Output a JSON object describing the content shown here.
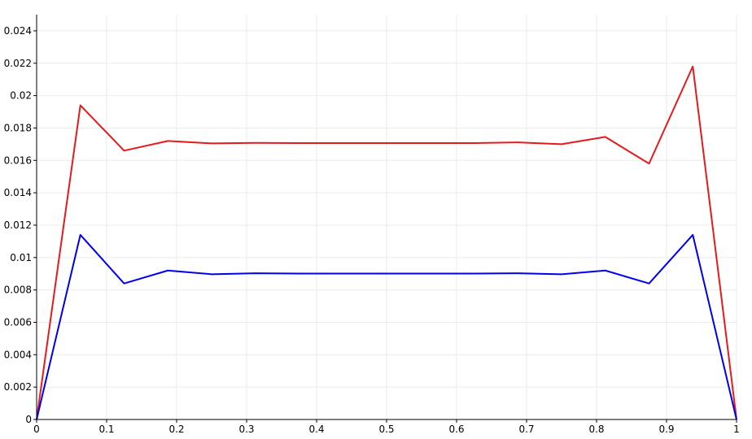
{
  "chart_data": {
    "type": "line",
    "xlim": [
      0,
      1
    ],
    "ylim": [
      0,
      0.025
    ],
    "grid": true,
    "legend": "none",
    "x_ticks": [
      {
        "value": 0,
        "label": "0"
      },
      {
        "value": 0.1,
        "label": "0.1"
      },
      {
        "value": 0.2,
        "label": "0.2"
      },
      {
        "value": 0.3,
        "label": "0.3"
      },
      {
        "value": 0.4,
        "label": "0.4"
      },
      {
        "value": 0.5,
        "label": "0.5"
      },
      {
        "value": 0.6,
        "label": "0.6"
      },
      {
        "value": 0.7,
        "label": "0.7"
      },
      {
        "value": 0.8,
        "label": "0.8"
      },
      {
        "value": 0.9,
        "label": "0.9"
      },
      {
        "value": 1,
        "label": "1"
      }
    ],
    "y_ticks": [
      {
        "value": 0,
        "label": "0"
      },
      {
        "value": 0.002,
        "label": "0.002"
      },
      {
        "value": 0.004,
        "label": "0.004"
      },
      {
        "value": 0.006,
        "label": "0.006"
      },
      {
        "value": 0.008,
        "label": "0.008"
      },
      {
        "value": 0.01,
        "label": "0.01"
      },
      {
        "value": 0.012,
        "label": "0.012"
      },
      {
        "value": 0.014,
        "label": "0.014"
      },
      {
        "value": 0.016,
        "label": "0.016"
      },
      {
        "value": 0.018,
        "label": "0.018"
      },
      {
        "value": 0.02,
        "label": "0.02"
      },
      {
        "value": 0.022,
        "label": "0.022"
      },
      {
        "value": 0.024,
        "label": "0.024"
      }
    ],
    "x": [
      0,
      0.0625,
      0.125,
      0.1875,
      0.25,
      0.3125,
      0.375,
      0.4375,
      0.5,
      0.5625,
      0.625,
      0.6875,
      0.75,
      0.8125,
      0.875,
      0.9375,
      1
    ],
    "series": [
      {
        "color": "#e41a1c",
        "values": [
          0,
          0.0194,
          0.0166,
          0.0172,
          0.01705,
          0.01708,
          0.01707,
          0.01707,
          0.01707,
          0.01707,
          0.01707,
          0.01711,
          0.017,
          0.01745,
          0.0158,
          0.0218,
          0
        ]
      },
      {
        "color": "#0000ee",
        "values": [
          0,
          0.0114,
          0.0084,
          0.0092,
          0.00897,
          0.00903,
          0.00901,
          0.00901,
          0.00901,
          0.00901,
          0.00901,
          0.00903,
          0.00897,
          0.0092,
          0.0084,
          0.0114,
          0
        ]
      }
    ]
  }
}
